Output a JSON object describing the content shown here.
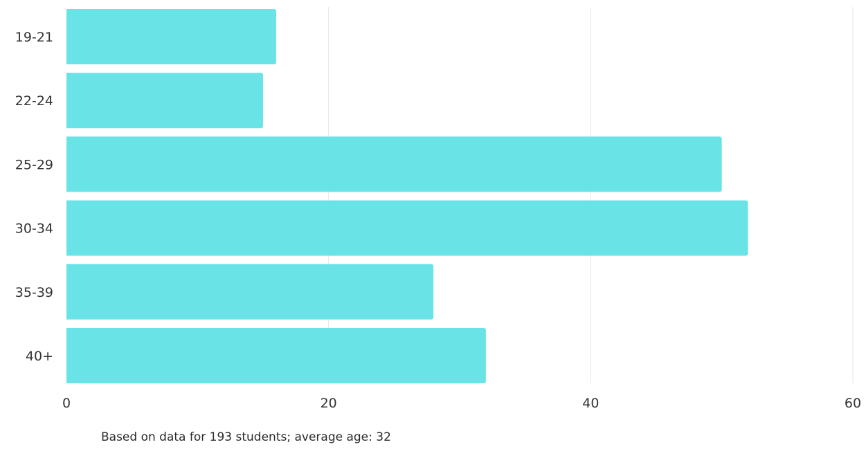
{
  "chart_data": {
    "type": "bar",
    "orientation": "horizontal",
    "categories": [
      "19-21",
      "22-24",
      "25-29",
      "30-34",
      "35-39",
      "40+"
    ],
    "values": [
      16,
      15,
      50,
      52,
      28,
      32
    ],
    "xlim": [
      0,
      60
    ],
    "xticks": [
      "0",
      "20",
      "40",
      "60"
    ],
    "grid": true,
    "title": "",
    "xlabel": "",
    "ylabel": "",
    "bar_color": "#6ae3e7",
    "gridline_color": "#e6e6e6"
  },
  "footnote": "Based on data for 193 students; average age: 32"
}
